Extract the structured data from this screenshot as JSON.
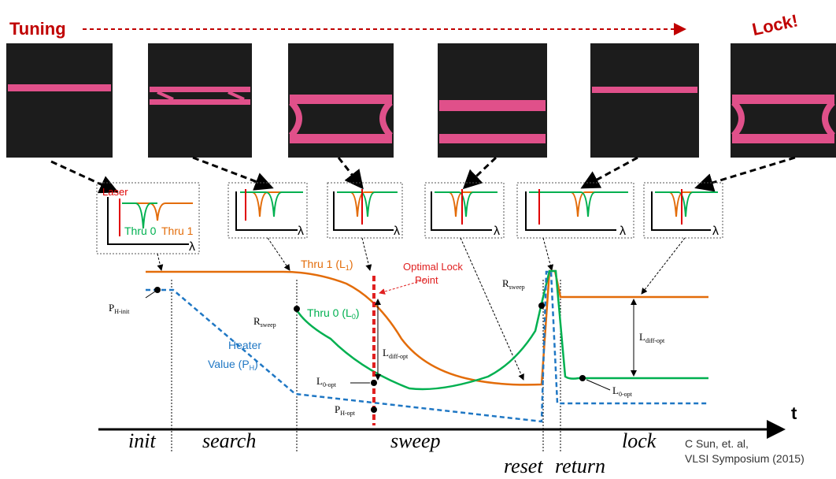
{
  "header": {
    "tuning": "Tuning",
    "lock": "Lock!"
  },
  "insets": {
    "laser": "Laser",
    "thru0": "Thru 0",
    "thru1": "Thru 1",
    "lambda": [
      "λ",
      "λ",
      "λ",
      "λ",
      "λ",
      "λ"
    ]
  },
  "labels": {
    "thru1": {
      "main": "Thru 1 (L",
      "sub": "1",
      "end": ")"
    },
    "optimal_lock": [
      "Optimal Lock",
      "Point"
    ],
    "thru0": {
      "main": "Thru 0 (L",
      "sub": "0",
      "end": ")"
    },
    "heater": {
      "line1": "Heater",
      "main": "Value (P",
      "sub": "H",
      "end": ")"
    },
    "p_h_init": {
      "main": "P",
      "sub": "H-init"
    },
    "r_sweep": [
      {
        "main": "R",
        "sub": "sweep"
      },
      {
        "main": "R",
        "sub": "sweep"
      }
    ],
    "l_diff_opt": [
      {
        "main": "L",
        "sub": "diff-opt"
      },
      {
        "main": "L",
        "sub": "diff-opt"
      }
    ],
    "l0_opt": [
      {
        "main": "L",
        "sub": "0-opt"
      },
      {
        "main": "L",
        "sub": "0-opt"
      }
    ],
    "p_h_opt": {
      "main": "P",
      "sub": "H-opt"
    },
    "t": "t"
  },
  "phases": [
    "init",
    "search",
    "sweep",
    "reset",
    "return",
    "lock"
  ],
  "citation": [
    "C Sun, et. al,",
    "VLSI Symposium (2015)"
  ]
}
